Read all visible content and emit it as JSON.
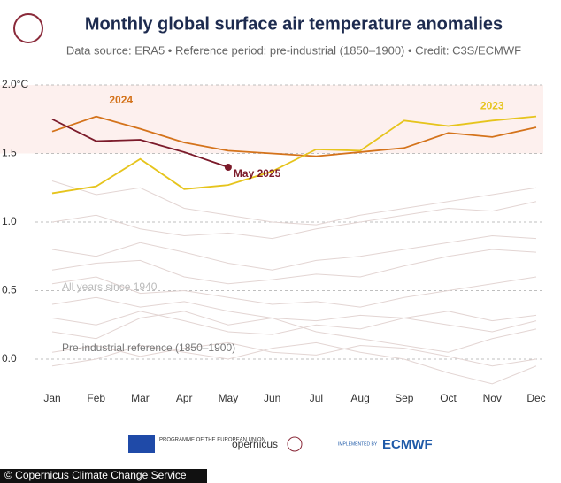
{
  "chart_data": {
    "type": "line",
    "title": "Monthly global surface air temperature anomalies",
    "subtitle": "Data source: ERA5 • Reference period: pre-industrial (1850–1900) • Credit: C3S/ECMWF",
    "categories": [
      "Jan",
      "Feb",
      "Mar",
      "Apr",
      "May",
      "Jun",
      "Jul",
      "Aug",
      "Sep",
      "Oct",
      "Nov",
      "Dec"
    ],
    "series": [
      {
        "name": "2024",
        "color": "#d4731b",
        "values": [
          1.66,
          1.77,
          1.68,
          1.58,
          1.52,
          1.5,
          1.48,
          1.51,
          1.54,
          1.65,
          1.62,
          1.69
        ]
      },
      {
        "name": "2023",
        "color": "#e6c41c",
        "values": [
          1.21,
          1.26,
          1.46,
          1.24,
          1.27,
          1.37,
          1.53,
          1.52,
          1.74,
          1.7,
          1.74,
          1.77
        ]
      },
      {
        "name": "May 2025",
        "color": "#7b1a2a",
        "end_marker": true,
        "values": [
          1.75,
          1.59,
          1.6,
          1.51,
          1.4,
          null,
          null,
          null,
          null,
          null,
          null,
          null
        ]
      }
    ],
    "background_label": "All years since 1940",
    "background_color": "#e3d5d3",
    "background_series": [
      [
        0.05,
        0.1,
        0.02,
        0.08,
        0.12,
        0.05,
        0.03,
        0.1,
        0.08,
        0.02,
        -0.05,
        0.0
      ],
      [
        0.3,
        0.25,
        0.35,
        0.28,
        0.2,
        0.18,
        0.25,
        0.22,
        0.3,
        0.35,
        0.28,
        0.32
      ],
      [
        0.55,
        0.6,
        0.48,
        0.5,
        0.45,
        0.4,
        0.42,
        0.38,
        0.45,
        0.5,
        0.55,
        0.6
      ],
      [
        0.2,
        0.15,
        0.3,
        0.35,
        0.25,
        0.3,
        0.2,
        0.15,
        0.1,
        0.05,
        0.15,
        0.22
      ],
      [
        0.8,
        0.75,
        0.85,
        0.78,
        0.7,
        0.65,
        0.72,
        0.75,
        0.8,
        0.85,
        0.9,
        0.88
      ],
      [
        1.0,
        1.05,
        0.95,
        0.9,
        0.92,
        0.88,
        0.95,
        1.0,
        1.05,
        1.1,
        1.08,
        1.15
      ],
      [
        0.65,
        0.7,
        0.72,
        0.6,
        0.55,
        0.58,
        0.62,
        0.6,
        0.68,
        0.75,
        0.8,
        0.78
      ],
      [
        1.3,
        1.2,
        1.25,
        1.1,
        1.05,
        1.0,
        0.98,
        1.05,
        1.1,
        1.15,
        1.2,
        1.25
      ],
      [
        0.4,
        0.45,
        0.38,
        0.42,
        0.35,
        0.3,
        0.28,
        0.32,
        0.3,
        0.25,
        0.2,
        0.28
      ],
      [
        -0.05,
        0.0,
        0.1,
        0.05,
        0.0,
        0.08,
        0.12,
        0.05,
        0.0,
        -0.1,
        -0.18,
        -0.05
      ]
    ],
    "reference_label": "Pre-industrial reference (1850–1900)",
    "band": [
      1.5,
      2.0
    ],
    "ylim": [
      -0.2,
      2.0
    ],
    "yticks": [
      {
        "value": 0,
        "label": "0.0"
      },
      0.5,
      {
        "value": 1,
        "label": "1.0"
      },
      1.5,
      {
        "value": 2,
        "label": "2.0°C"
      }
    ],
    "grid": true
  },
  "logos": {
    "eu": "PROGRAMME OF THE EUROPEAN UNION",
    "copernicus": "opernicus",
    "implemented": "IMPLEMENTED BY",
    "ecmwf": "ECMWF"
  },
  "footer": "© Copernicus Climate Change Service"
}
